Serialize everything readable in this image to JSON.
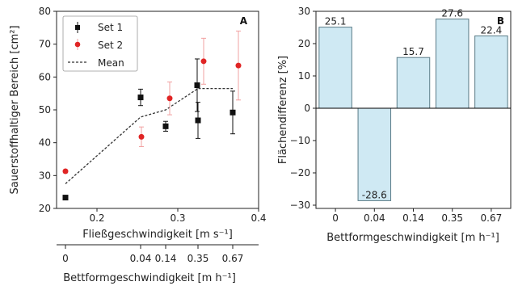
{
  "colors": {
    "set1": "#111111",
    "set2": "#e02424",
    "set2_err": "#f2a0a0",
    "mean": "#333333",
    "bar_fill": "#cfe9f3",
    "bar_edge": "#5a7b87",
    "zero_line": "#000000"
  },
  "chart_data": [
    {
      "type": "scatter",
      "panel_label": "A",
      "xlabel": "Fließgeschwindigkeit [m s⁻¹]",
      "ylabel": "Sauerstoffhaltiger Bereich [cm²]",
      "xlim": [
        0.15,
        0.4
      ],
      "ylim": [
        20,
        80
      ],
      "x_ticks": [
        0.2,
        0.3,
        0.4
      ],
      "x_tick_labels": [
        "0.2",
        "0.3",
        "0.4"
      ],
      "y_ticks": [
        20,
        30,
        40,
        50,
        60,
        70,
        80
      ],
      "y_tick_labels": [
        "20",
        "30",
        "40",
        "50",
        "60",
        "70",
        "80"
      ],
      "grid": false,
      "legend_position": "top-left",
      "secondary_x_axis": {
        "label": "Bettformgeschwindigkeit [m h⁻¹]",
        "tick_positions": [
          0.161,
          0.254,
          0.285,
          0.325,
          0.368
        ],
        "tick_labels": [
          "0",
          "0.04",
          "0.14",
          "0.35",
          "0.67"
        ]
      },
      "series": [
        {
          "name": "Set 1",
          "marker": "square",
          "points": [
            {
              "x": 0.161,
              "y": 23.3,
              "err": 0.5
            },
            {
              "x": 0.254,
              "y": 53.8,
              "err": 2.5
            },
            {
              "x": 0.285,
              "y": 45.0,
              "err": 1.5
            },
            {
              "x": 0.324,
              "y": 57.5,
              "err": 8.0
            },
            {
              "x": 0.325,
              "y": 46.8,
              "err": 5.5
            },
            {
              "x": 0.368,
              "y": 49.2,
              "err": 6.5
            }
          ]
        },
        {
          "name": "Set 2",
          "marker": "circle",
          "points": [
            {
              "x": 0.161,
              "y": 31.3,
              "err": 0.5
            },
            {
              "x": 0.255,
              "y": 41.8,
              "err": 3.0
            },
            {
              "x": 0.29,
              "y": 53.5,
              "err": 5.0
            },
            {
              "x": 0.332,
              "y": 64.8,
              "err": 7.0
            },
            {
              "x": 0.375,
              "y": 63.5,
              "err": 10.5
            }
          ]
        },
        {
          "name": "Mean",
          "style": "dashed-line",
          "points": [
            {
              "x": 0.161,
              "y": 27.5
            },
            {
              "x": 0.254,
              "y": 47.8
            },
            {
              "x": 0.285,
              "y": 50.0
            },
            {
              "x": 0.325,
              "y": 56.5
            },
            {
              "x": 0.368,
              "y": 56.5
            }
          ]
        }
      ]
    },
    {
      "type": "bar",
      "panel_label": "B",
      "xlabel": "Bettformgeschwindigkeit [m h⁻¹]",
      "ylabel": "Flächendifferenz [%]",
      "categories": [
        "0",
        "0.04",
        "0.14",
        "0.35",
        "0.67"
      ],
      "values": [
        25.1,
        -28.6,
        15.7,
        27.6,
        22.4
      ],
      "value_labels": [
        "25.1",
        "-28.6",
        "15.7",
        "27.6",
        "22.4"
      ],
      "ylim": [
        -31,
        30
      ],
      "y_ticks": [
        -30,
        -20,
        -10,
        0,
        10,
        20,
        30
      ],
      "y_tick_labels": [
        "−30",
        "−20",
        "−10",
        "0",
        "10",
        "20",
        "30"
      ],
      "grid": false
    }
  ]
}
